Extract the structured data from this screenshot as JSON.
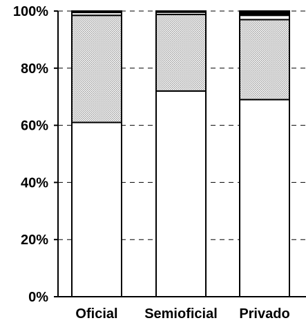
{
  "chart_data": {
    "type": "bar",
    "stacked": true,
    "percent_stacked": true,
    "categories": [
      "Oficial",
      "Semioficial",
      "Privado"
    ],
    "series": [
      {
        "values": [
          61,
          72,
          69
        ],
        "fill": "white"
      },
      {
        "values": [
          37.5,
          26.8,
          28
        ],
        "fill": "dotted-gray"
      },
      {
        "values": [
          1,
          0.8,
          1.5
        ],
        "fill": "white"
      },
      {
        "values": [
          0.5,
          0.4,
          1.5
        ],
        "fill": "black"
      }
    ],
    "ylim": [
      0,
      100
    ],
    "y_ticks": [
      0,
      20,
      40,
      60,
      80,
      100
    ],
    "y_tick_labels": [
      "0%",
      "20%",
      "40%",
      "60%",
      "80%",
      "100%"
    ],
    "grid": "horizontal dashed",
    "legend": "none"
  },
  "colors": {
    "background": "#ffffff",
    "bar_outline": "#000000",
    "gridline": "#000000",
    "dotted_fill": "#c8c8c8",
    "black_fill": "#000000"
  }
}
